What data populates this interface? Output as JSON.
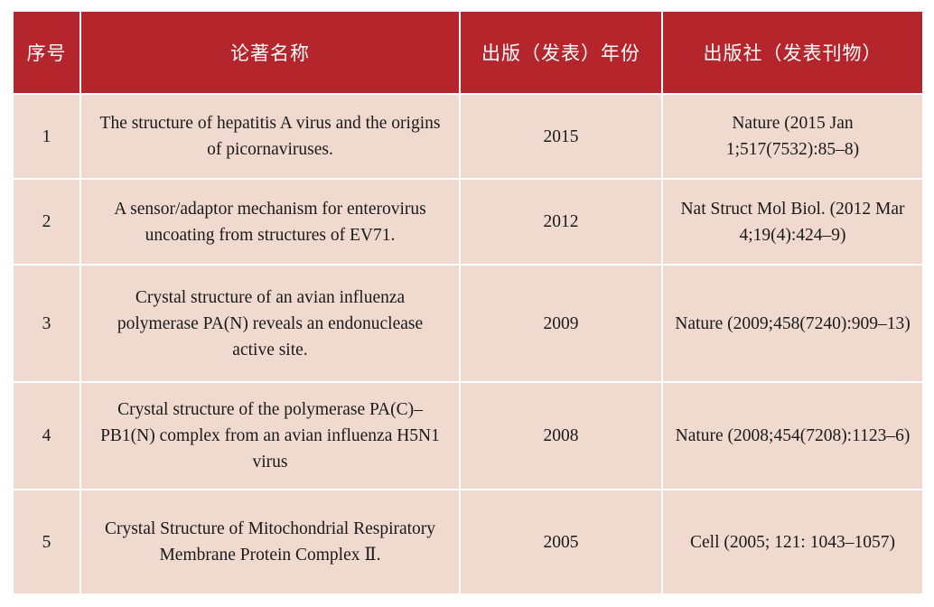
{
  "table": {
    "headers": [
      "序号",
      "论著名称",
      "出版（发表）年份",
      "出版社（发表刊物）"
    ],
    "rows": [
      {
        "no": "1",
        "title": "The structure of hepatitis A virus and the origins of picornaviruses.",
        "year": "2015",
        "publisher": "Nature (2015 Jan 1;517(7532):85–8)"
      },
      {
        "no": "2",
        "title": "A sensor/adaptor mechanism for enterovirus uncoating from structures of EV71.",
        "year": "2012",
        "publisher": "Nat Struct Mol Biol. (2012 Mar 4;19(4):424–9)"
      },
      {
        "no": "3",
        "title": "Crystal structure of an avian influenza polymerase PA(N) reveals an endonuclease active site.",
        "year": "2009",
        "publisher": "Nature (2009;458(7240):909–13)"
      },
      {
        "no": "4",
        "title": "Crystal structure of the polymerase PA(C)–PB1(N) complex from an avian influenza H5N1 virus",
        "year": "2008",
        "publisher": "Nature (2008;454(7208):1123–6)"
      },
      {
        "no": "5",
        "title": "Crystal Structure of Mitochondrial Respiratory Membrane Protein Complex Ⅱ.",
        "year": "2005",
        "publisher": "Cell (2005; 121: 1043–1057)"
      }
    ]
  }
}
